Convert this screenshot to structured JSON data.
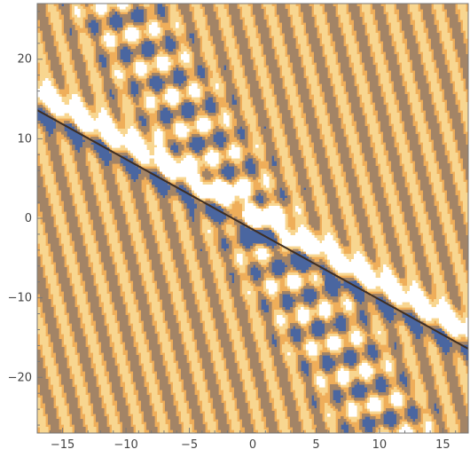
{
  "chart_data": {
    "type": "heatmap",
    "subtype": "filled-contour",
    "title": "",
    "xlabel": "",
    "ylabel": "",
    "xlim": [
      -17,
      17
    ],
    "ylim": [
      -27,
      27
    ],
    "x_ticks": [
      -15,
      -10,
      -5,
      0,
      5,
      10,
      15
    ],
    "x_tick_labels": [
      "−15",
      "−10",
      "−5",
      "0",
      "5",
      "10",
      "15"
    ],
    "y_ticks": [
      -20,
      -10,
      0,
      10,
      20
    ],
    "y_tick_labels": [
      "−20",
      "−10",
      "0",
      "10",
      "20"
    ],
    "grid": false,
    "legend": "none",
    "contour_levels": [
      {
        "name": "blue-low",
        "color": "#4a66a0"
      },
      {
        "name": "dark-brown",
        "color": "#a38466"
      },
      {
        "name": "orange",
        "color": "#efae5a"
      },
      {
        "name": "light-orange",
        "color": "#f8d690"
      },
      {
        "name": "white-high",
        "color": "#ffffff"
      }
    ],
    "features": {
      "stripe_direction": "diagonal, rising toward upper-left steeply",
      "soliton_line": {
        "x": [
          -17,
          17
        ],
        "y": [
          14.5,
          -15.5
        ]
      },
      "interaction_center": {
        "x": 0,
        "y": 0
      },
      "oscillation_band_axis": {
        "x": [
          -11,
          11
        ],
        "y": [
          27,
          -27
        ]
      }
    },
    "colors": {
      "contour_edge": "#3d2d22",
      "axis": "#777777",
      "tick_label": "#444444"
    }
  }
}
